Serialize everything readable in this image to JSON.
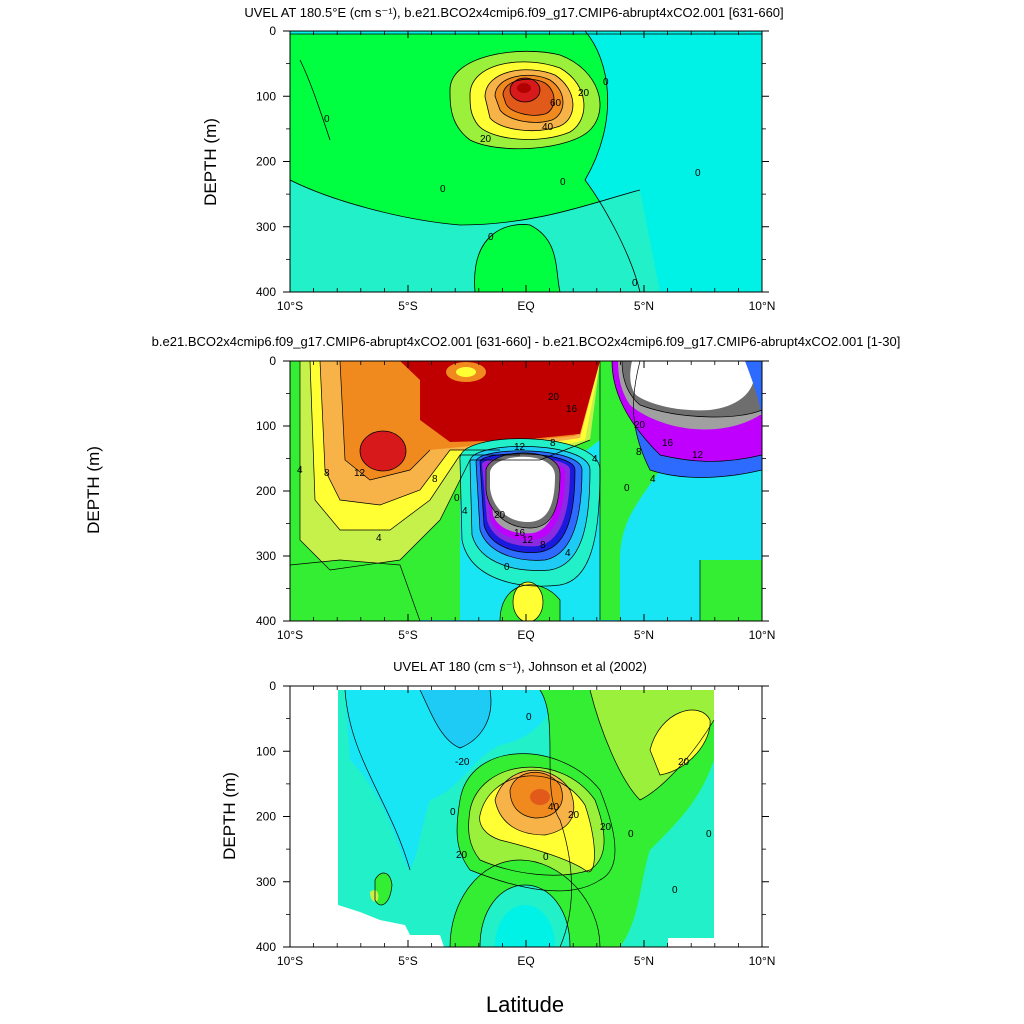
{
  "figure": {
    "xlabel": "Latitude"
  },
  "colors": {
    "red": "#d7191c",
    "darkred": "#c00000",
    "orange": "#f08a1f",
    "lightorange": "#f7b347",
    "yellow": "#ffff33",
    "yellowgreen": "#c6f04a",
    "green": "#33ee33",
    "brightgreen": "#00ff40",
    "turquoise": "#22f0c8",
    "aqua": "#00f2e6",
    "cyan": "#19e6f5",
    "skyblue": "#1ecbf5",
    "blue": "#2d6bff",
    "darkblue": "#1a1adc",
    "purple": "#8a2be2",
    "magenta": "#c000ff",
    "gray": "#a0a0a0",
    "darkgray": "#6e6e6e"
  },
  "chart_data": [
    {
      "type": "contour",
      "title": "UVEL AT 180.5°E (cm s⁻¹), b.e21.BCO2x4cmip6.f09_g17.CMIP6-abrupt4xCO2.001 [631-660]",
      "xlabel": "",
      "ylabel": "DEPTH (m)",
      "xlim": [
        -10,
        10
      ],
      "ylim": [
        400,
        0
      ],
      "xticks": [
        "10°S",
        "5°S",
        "EQ",
        "5°N",
        "10°N"
      ],
      "yticks": [
        "0",
        "100",
        "200",
        "300",
        "400"
      ],
      "contour_labels": [
        "0",
        "0",
        "0",
        "0",
        "0",
        "0",
        "0",
        "20",
        "20",
        "40",
        "60"
      ],
      "max_value": 80,
      "max_location": {
        "lat": 0,
        "depth": 90
      }
    },
    {
      "type": "contour",
      "title": "b.e21.BCO2x4cmip6.f09_g17.CMIP6-abrupt4xCO2.001 [631-660] - b.e21.BCO2x4cmip6.f09_g17.CMIP6-abrupt4xCO2.001 [1-30]",
      "xlabel": "",
      "ylabel": "DEPTH (m)",
      "xlim": [
        -10,
        10
      ],
      "ylim": [
        400,
        0
      ],
      "xticks": [
        "10°S",
        "5°S",
        "EQ",
        "5°N",
        "10°N"
      ],
      "yticks": [
        "0",
        "100",
        "200",
        "300",
        "400"
      ],
      "contour_labels": [
        "4",
        "8",
        "12",
        "8",
        "4",
        "20",
        "16",
        "12",
        "8",
        "4",
        "0",
        "4",
        "20",
        "16",
        "12",
        "8",
        "4",
        "0",
        "20",
        "16",
        "12",
        "8",
        "4",
        "0"
      ],
      "positive_max_location": {
        "lat": -2,
        "depth": 60
      },
      "negative_min_location": {
        "lat": 0,
        "depth": 190
      }
    },
    {
      "type": "contour",
      "title": "UVEL AT 180 (cm s⁻¹), Johnson et al (2002)",
      "xlabel": "Latitude",
      "ylabel": "DEPTH (m)",
      "xlim": [
        -10,
        10
      ],
      "ylim": [
        400,
        0
      ],
      "xticks": [
        "10°S",
        "5°S",
        "EQ",
        "5°N",
        "10°N"
      ],
      "yticks": [
        "0",
        "100",
        "200",
        "300",
        "400"
      ],
      "contour_labels": [
        "0",
        "-20",
        "0",
        "40",
        "20",
        "20",
        "0",
        "20",
        "0",
        "0",
        "0",
        "20"
      ],
      "data_extent_lat": [
        -8,
        8
      ],
      "max_location": {
        "lat": 0.5,
        "depth": 170
      }
    }
  ]
}
